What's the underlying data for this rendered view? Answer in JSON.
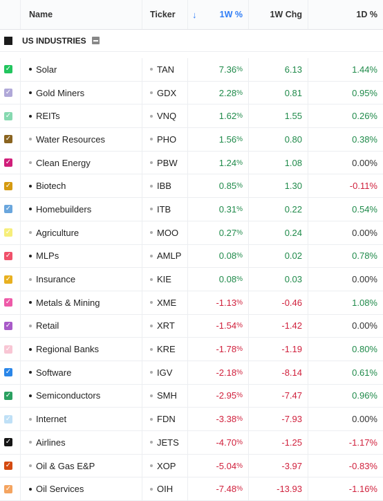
{
  "header": {
    "name": "Name",
    "ticker": "Ticker",
    "sort_icon": "↓",
    "pct_1w": "1W %",
    "chg_1w": "1W Chg",
    "pct_1d": "1D %"
  },
  "group": {
    "label": "US INDUSTRIES"
  },
  "rows": [
    {
      "name": "Solar",
      "ticker": "TAN",
      "w": "7.36",
      "c": "6.13",
      "d": "1.44%",
      "color": "#22c55e",
      "wd": "pos",
      "cd": "pos",
      "dd": "pos",
      "b": "dark"
    },
    {
      "name": "Gold Miners",
      "ticker": "GDX",
      "w": "2.28",
      "c": "0.81",
      "d": "0.95%",
      "color": "#b0a8d8",
      "wd": "pos",
      "cd": "pos",
      "dd": "pos",
      "b": "dark"
    },
    {
      "name": "REITs",
      "ticker": "VNQ",
      "w": "1.62",
      "c": "1.55",
      "d": "0.26%",
      "color": "#86d9b0",
      "wd": "pos",
      "cd": "pos",
      "dd": "pos",
      "b": "dark"
    },
    {
      "name": "Water Resources",
      "ticker": "PHO",
      "w": "1.56",
      "c": "0.80",
      "d": "0.38%",
      "color": "#8a6420",
      "wd": "pos",
      "cd": "pos",
      "dd": "pos",
      "b": "light"
    },
    {
      "name": "Clean Energy",
      "ticker": "PBW",
      "w": "1.24",
      "c": "1.08",
      "d": "0.00%",
      "color": "#d01e7a",
      "wd": "pos",
      "cd": "pos",
      "dd": "zero",
      "b": "light"
    },
    {
      "name": "Biotech",
      "ticker": "IBB",
      "w": "0.85",
      "c": "1.30",
      "d": "-0.11%",
      "color": "#d59a10",
      "wd": "pos",
      "cd": "pos",
      "dd": "neg",
      "b": "dark"
    },
    {
      "name": "Homebuilders",
      "ticker": "ITB",
      "w": "0.31",
      "c": "0.22",
      "d": "0.54%",
      "color": "#6aa6dd",
      "wd": "pos",
      "cd": "pos",
      "dd": "pos",
      "b": "dark"
    },
    {
      "name": "Agriculture",
      "ticker": "MOO",
      "w": "0.27",
      "c": "0.24",
      "d": "0.00%",
      "color": "#f6ee7a",
      "wd": "pos",
      "cd": "pos",
      "dd": "zero",
      "b": "light"
    },
    {
      "name": "MLPs",
      "ticker": "AMLP",
      "w": "0.08",
      "c": "0.02",
      "d": "0.78%",
      "color": "#f0506a",
      "wd": "pos",
      "cd": "pos",
      "dd": "pos",
      "b": "dark"
    },
    {
      "name": "Insurance",
      "ticker": "KIE",
      "w": "0.08",
      "c": "0.03",
      "d": "0.00%",
      "color": "#e8b020",
      "wd": "pos",
      "cd": "pos",
      "dd": "zero",
      "b": "light"
    },
    {
      "name": "Metals & Mining",
      "ticker": "XME",
      "w": "-1.13",
      "c": "-0.46",
      "d": "1.08%",
      "color": "#ee5aa8",
      "wd": "neg",
      "cd": "neg",
      "dd": "pos",
      "b": "dark"
    },
    {
      "name": "Retail",
      "ticker": "XRT",
      "w": "-1.54",
      "c": "-1.42",
      "d": "0.00%",
      "color": "#a85ac8",
      "wd": "neg",
      "cd": "neg",
      "dd": "zero",
      "b": "light"
    },
    {
      "name": "Regional Banks",
      "ticker": "KRE",
      "w": "-1.78",
      "c": "-1.19",
      "d": "0.80%",
      "color": "#f8c6d4",
      "wd": "neg",
      "cd": "neg",
      "dd": "pos",
      "b": "dark"
    },
    {
      "name": "Software",
      "ticker": "IGV",
      "w": "-2.18",
      "c": "-8.14",
      "d": "0.61%",
      "color": "#2a86e8",
      "wd": "neg",
      "cd": "neg",
      "dd": "pos",
      "b": "dark"
    },
    {
      "name": "Semiconductors",
      "ticker": "SMH",
      "w": "-2.95",
      "c": "-7.47",
      "d": "0.96%",
      "color": "#2aa060",
      "wd": "neg",
      "cd": "neg",
      "dd": "pos",
      "b": "dark"
    },
    {
      "name": "Internet",
      "ticker": "FDN",
      "w": "-3.38",
      "c": "-7.93",
      "d": "0.00%",
      "color": "#bfe0f6",
      "wd": "neg",
      "cd": "neg",
      "dd": "zero",
      "b": "light"
    },
    {
      "name": "Airlines",
      "ticker": "JETS",
      "w": "-4.70",
      "c": "-1.25",
      "d": "-1.17%",
      "color": "#151515",
      "wd": "neg",
      "cd": "neg",
      "dd": "neg",
      "b": "light"
    },
    {
      "name": "Oil & Gas E&P",
      "ticker": "XOP",
      "w": "-5.04",
      "c": "-3.97",
      "d": "-0.83%",
      "color": "#d44a10",
      "wd": "neg",
      "cd": "neg",
      "dd": "neg",
      "b": "light"
    },
    {
      "name": "Oil Services",
      "ticker": "OIH",
      "w": "-7.48",
      "c": "-13.93",
      "d": "-1.16%",
      "color": "#f4a460",
      "wd": "neg",
      "cd": "neg",
      "dd": "neg",
      "b": "dark"
    }
  ]
}
